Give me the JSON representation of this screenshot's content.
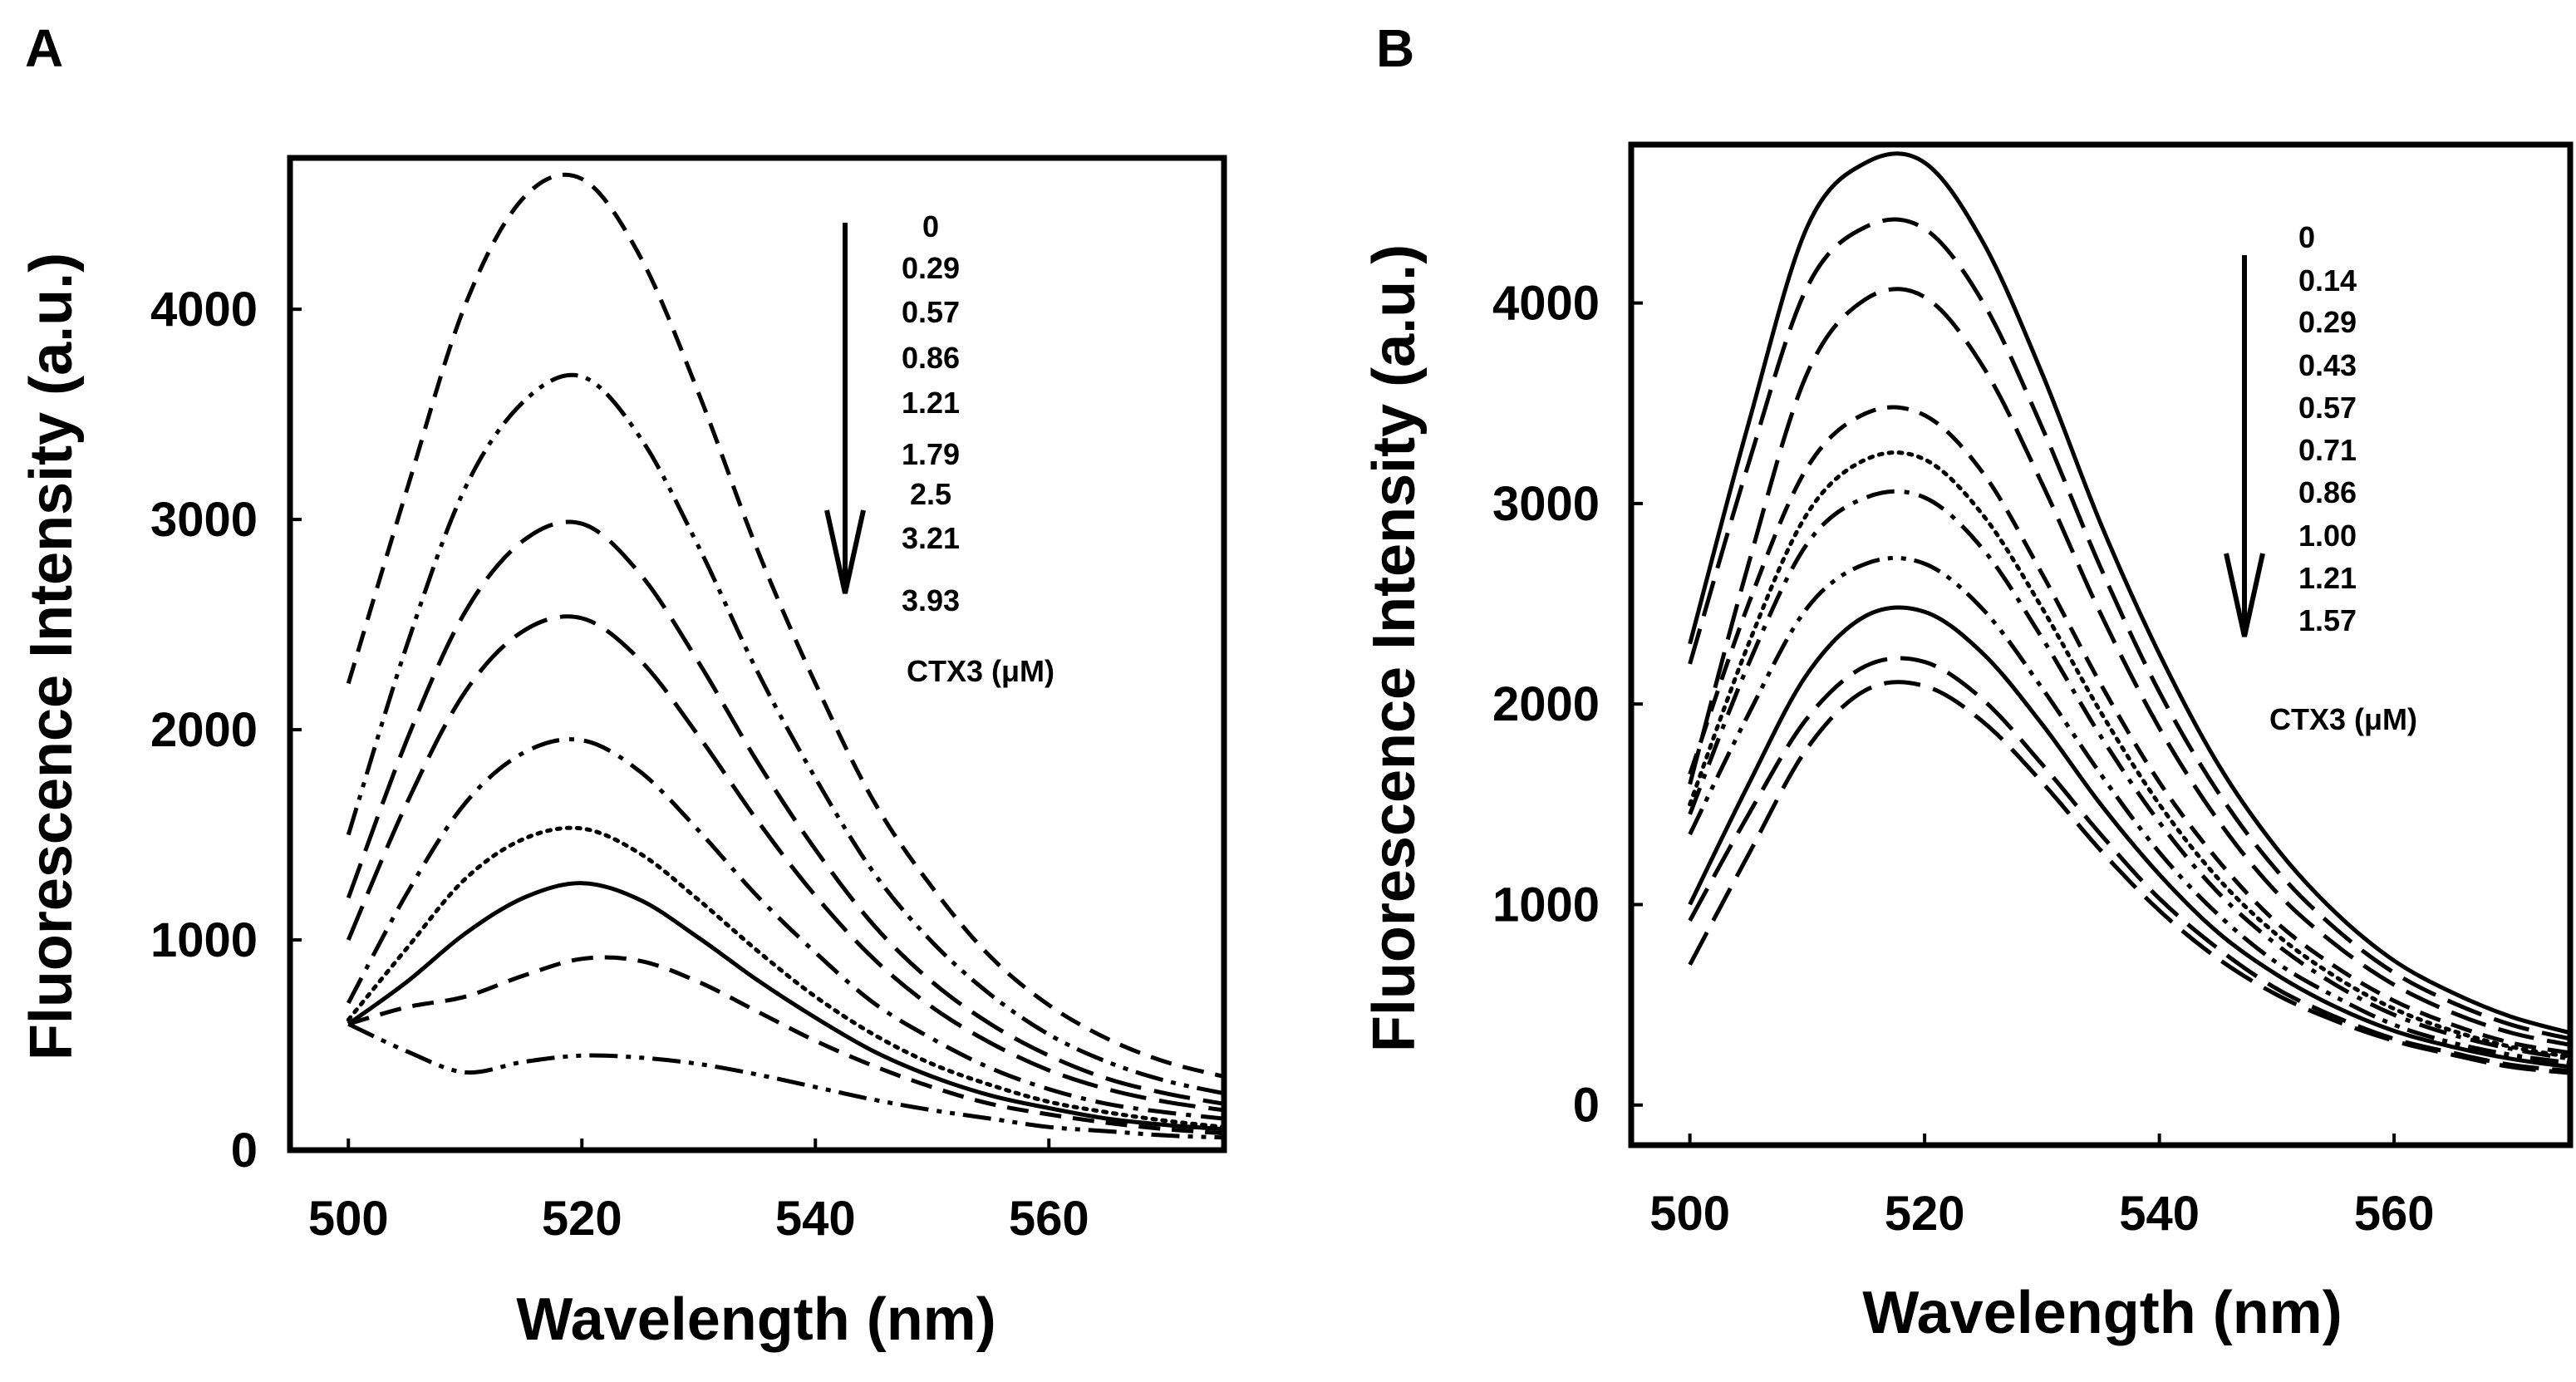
{
  "chart_data": [
    {
      "panel_label": "A",
      "type": "line",
      "xlabel": "Wavelength (nm)",
      "ylabel": "Fluorescence Intensity (a.u.)",
      "xlim": [
        495,
        575
      ],
      "ylim": [
        0,
        4720
      ],
      "xticks": [
        500,
        520,
        540,
        560
      ],
      "yticks": [
        0,
        1000,
        2000,
        3000,
        4000
      ],
      "legend_title": "CTX3 (μM)",
      "legend_arrow": "down",
      "x": [
        500,
        505,
        510,
        515,
        520,
        525,
        530,
        535,
        540,
        545,
        550,
        555,
        560,
        565,
        570,
        575
      ],
      "series": [
        {
          "name": "0",
          "style": "dashed",
          "values": [
            2220,
            3140,
            4020,
            4530,
            4620,
            4250,
            3600,
            2860,
            2220,
            1660,
            1250,
            920,
            690,
            530,
            420,
            350
          ]
        },
        {
          "name": "0.29",
          "style": "dashdotdot",
          "values": [
            1500,
            2400,
            3150,
            3560,
            3680,
            3390,
            2870,
            2280,
            1770,
            1320,
            990,
            740,
            550,
            420,
            330,
            270
          ]
        },
        {
          "name": "0.57",
          "style": "longdash",
          "values": [
            1200,
            1950,
            2560,
            2900,
            2980,
            2740,
            2320,
            1850,
            1430,
            1070,
            800,
            600,
            450,
            340,
            270,
            220
          ]
        },
        {
          "name": "0.86",
          "style": "longdash",
          "values": [
            1000,
            1650,
            2180,
            2470,
            2530,
            2330,
            1970,
            1570,
            1210,
            910,
            680,
            510,
            380,
            290,
            230,
            190
          ]
        },
        {
          "name": "1.21",
          "style": "dashdot",
          "values": [
            700,
            1220,
            1650,
            1890,
            1950,
            1800,
            1520,
            1210,
            940,
            700,
            530,
            390,
            290,
            220,
            180,
            150
          ]
        },
        {
          "name": "1.79",
          "style": "dotted",
          "values": [
            620,
            960,
            1290,
            1480,
            1530,
            1410,
            1190,
            950,
            730,
            550,
            410,
            310,
            230,
            180,
            140,
            110
          ]
        },
        {
          "name": "2.5",
          "style": "solid",
          "values": [
            600,
            800,
            1030,
            1200,
            1270,
            1190,
            1010,
            810,
            630,
            470,
            350,
            260,
            200,
            150,
            120,
            100
          ]
        },
        {
          "name": "3.21",
          "style": "dashed",
          "values": [
            600,
            680,
            730,
            830,
            910,
            900,
            800,
            660,
            520,
            400,
            300,
            220,
            170,
            130,
            100,
            80
          ]
        },
        {
          "name": "3.93",
          "style": "dashdotdot",
          "values": [
            600,
            470,
            370,
            420,
            450,
            440,
            410,
            360,
            300,
            240,
            190,
            150,
            110,
            90,
            70,
            60
          ]
        }
      ]
    },
    {
      "panel_label": "B",
      "type": "line",
      "xlabel": "Wavelength (nm)",
      "ylabel": "Fluorescence Intensity (a.u.)",
      "xlim": [
        495,
        575
      ],
      "ylim": [
        -200,
        4790
      ],
      "xticks": [
        500,
        520,
        540,
        560
      ],
      "yticks": [
        0,
        1000,
        2000,
        3000,
        4000
      ],
      "legend_title": "CTX3 (μM)",
      "legend_arrow": "down",
      "x": [
        500,
        505,
        510,
        515,
        520,
        525,
        530,
        535,
        540,
        545,
        550,
        555,
        560,
        565,
        570,
        575
      ],
      "series": [
        {
          "name": "0",
          "style": "solid",
          "values": [
            2300,
            3400,
            4380,
            4700,
            4700,
            4300,
            3650,
            2900,
            2250,
            1700,
            1280,
            960,
            720,
            560,
            440,
            360
          ]
        },
        {
          "name": "0.14",
          "style": "longdash",
          "values": [
            2200,
            3200,
            4080,
            4380,
            4370,
            4000,
            3380,
            2680,
            2060,
            1560,
            1170,
            880,
            660,
            510,
            400,
            330
          ]
        },
        {
          "name": "0.29",
          "style": "longdash",
          "values": [
            1600,
            2700,
            3650,
            4020,
            4030,
            3680,
            3100,
            2450,
            1880,
            1420,
            1060,
            800,
            600,
            460,
            360,
            300
          ]
        },
        {
          "name": "0.43",
          "style": "dashed",
          "values": [
            1650,
            2500,
            3180,
            3450,
            3440,
            3150,
            2650,
            2100,
            1610,
            1220,
            910,
            690,
            520,
            400,
            310,
            260
          ]
        },
        {
          "name": "0.57",
          "style": "dotted",
          "values": [
            1500,
            2300,
            2950,
            3220,
            3220,
            2940,
            2480,
            1960,
            1500,
            1130,
            850,
            640,
            480,
            370,
            290,
            240
          ]
        },
        {
          "name": "0.71",
          "style": "dashdot",
          "values": [
            1450,
            2200,
            2800,
            3030,
            3030,
            2770,
            2330,
            1840,
            1410,
            1060,
            800,
            600,
            450,
            350,
            280,
            230
          ]
        },
        {
          "name": "0.86",
          "style": "dashdotdot",
          "values": [
            1350,
            1950,
            2480,
            2700,
            2700,
            2470,
            2080,
            1650,
            1260,
            950,
            710,
            540,
            400,
            310,
            250,
            210
          ]
        },
        {
          "name": "1.00",
          "style": "solid",
          "values": [
            1000,
            1600,
            2150,
            2440,
            2460,
            2250,
            1900,
            1500,
            1150,
            860,
            650,
            490,
            370,
            290,
            230,
            190
          ]
        },
        {
          "name": "1.21",
          "style": "longdash",
          "values": [
            920,
            1450,
            1930,
            2190,
            2210,
            2020,
            1700,
            1350,
            1030,
            780,
            580,
            440,
            330,
            260,
            200,
            170
          ]
        },
        {
          "name": "1.57",
          "style": "longdash",
          "values": [
            700,
            1250,
            1780,
            2070,
            2090,
            1910,
            1610,
            1270,
            970,
            730,
            550,
            420,
            320,
            250,
            190,
            160
          ]
        }
      ]
    }
  ]
}
